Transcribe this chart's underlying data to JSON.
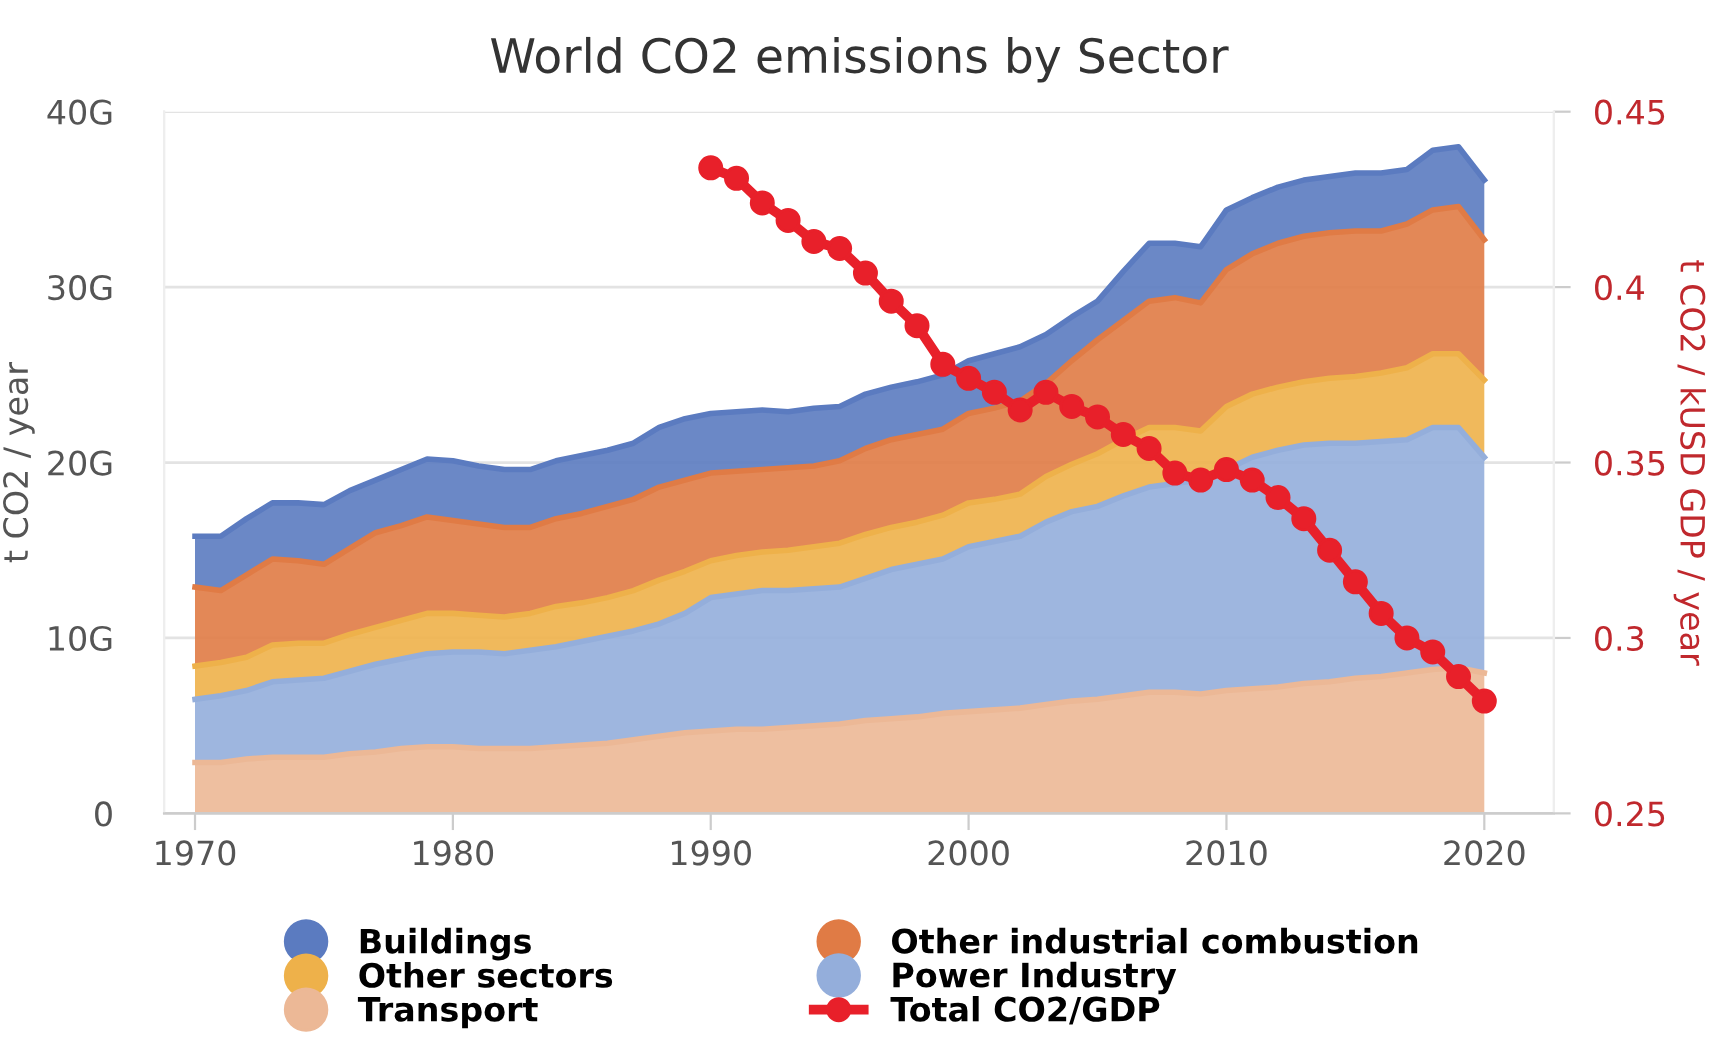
{
  "chart_data": {
    "type": "area",
    "stacked": true,
    "title": "World CO2 emissions by Sector",
    "ylabel": "t CO2 / year",
    "y2label": "t CO2 / kUSD GDP / year",
    "x": [
      1970,
      1971,
      1972,
      1973,
      1974,
      1975,
      1976,
      1977,
      1978,
      1979,
      1980,
      1981,
      1982,
      1983,
      1984,
      1985,
      1986,
      1987,
      1988,
      1989,
      1990,
      1991,
      1992,
      1993,
      1994,
      1995,
      1996,
      1997,
      1998,
      1999,
      2000,
      2001,
      2002,
      2003,
      2004,
      2005,
      2006,
      2007,
      2008,
      2009,
      2010,
      2011,
      2012,
      2013,
      2014,
      2015,
      2016,
      2017,
      2018,
      2019,
      2020
    ],
    "xlim": [
      1968.8,
      2022.7
    ],
    "xticks": [
      1970,
      1980,
      1990,
      2000,
      2010,
      2020
    ],
    "ylim": [
      0,
      40
    ],
    "yticks": [
      0,
      {
        "value": 10,
        "label": "10G"
      },
      {
        "value": 20,
        "label": "20G"
      },
      {
        "value": 30,
        "label": "30G"
      },
      {
        "value": 40,
        "label": "40G"
      }
    ],
    "y2lim": [
      0.25,
      0.45
    ],
    "y2ticks": [
      0.25,
      0.3,
      0.35,
      0.4,
      0.45
    ],
    "grid": "y",
    "legend": "bottom",
    "series": [
      {
        "name": "Transport",
        "color": "#ecb896",
        "values": [
          2.9,
          2.9,
          3.1,
          3.2,
          3.2,
          3.2,
          3.4,
          3.5,
          3.7,
          3.8,
          3.8,
          3.7,
          3.7,
          3.7,
          3.8,
          3.9,
          4.0,
          4.2,
          4.4,
          4.6,
          4.7,
          4.8,
          4.8,
          4.9,
          5.0,
          5.1,
          5.3,
          5.4,
          5.5,
          5.7,
          5.8,
          5.9,
          6.0,
          6.2,
          6.4,
          6.5,
          6.7,
          6.9,
          6.9,
          6.8,
          7.0,
          7.1,
          7.2,
          7.4,
          7.5,
          7.7,
          7.8,
          8.0,
          8.2,
          8.3,
          8.0
        ]
      },
      {
        "name": "Power Industry",
        "color": "#94aedb",
        "values": [
          3.6,
          3.8,
          3.9,
          4.3,
          4.4,
          4.5,
          4.7,
          5.0,
          5.1,
          5.3,
          5.4,
          5.5,
          5.4,
          5.6,
          5.7,
          5.9,
          6.1,
          6.2,
          6.4,
          6.8,
          7.6,
          7.7,
          7.9,
          7.8,
          7.8,
          7.8,
          8.1,
          8.5,
          8.7,
          8.8,
          9.4,
          9.6,
          9.8,
          10.4,
          10.8,
          11.0,
          11.4,
          11.7,
          11.9,
          12.2,
          12.6,
          13.2,
          13.5,
          13.6,
          13.6,
          13.4,
          13.4,
          13.3,
          13.8,
          13.7,
          12.3
        ]
      },
      {
        "name": "Other sectors",
        "color": "#eeb14a",
        "values": [
          1.9,
          1.9,
          1.9,
          2.1,
          2.1,
          2.0,
          2.1,
          2.1,
          2.2,
          2.3,
          2.2,
          2.1,
          2.1,
          2.1,
          2.3,
          2.2,
          2.2,
          2.3,
          2.5,
          2.4,
          2.1,
          2.2,
          2.2,
          2.3,
          2.4,
          2.5,
          2.5,
          2.4,
          2.4,
          2.5,
          2.5,
          2.4,
          2.4,
          2.6,
          2.7,
          3.0,
          3.2,
          3.4,
          3.2,
          2.8,
          3.6,
          3.6,
          3.6,
          3.6,
          3.7,
          3.8,
          3.9,
          4.1,
          4.2,
          4.2,
          4.4
        ]
      },
      {
        "name": "Other industrial combustion",
        "color": "#e07b45",
        "values": [
          4.5,
          4.1,
          4.7,
          4.9,
          4.7,
          4.5,
          4.9,
          5.4,
          5.4,
          5.5,
          5.3,
          5.2,
          5.1,
          4.9,
          5.0,
          5.1,
          5.2,
          5.2,
          5.3,
          5.2,
          5.0,
          4.8,
          4.7,
          4.7,
          4.6,
          4.7,
          4.9,
          5.0,
          5.0,
          4.9,
          5.1,
          5.2,
          5.3,
          5.3,
          5.9,
          6.5,
          6.8,
          7.2,
          7.4,
          7.3,
          7.8,
          8.0,
          8.2,
          8.3,
          8.3,
          8.3,
          8.1,
          8.2,
          8.2,
          8.4,
          8.0
        ]
      },
      {
        "name": "Buildings",
        "color": "#5b7bc0",
        "values": [
          2.9,
          3.1,
          3.2,
          3.2,
          3.3,
          3.4,
          3.3,
          3.0,
          3.2,
          3.3,
          3.4,
          3.3,
          3.3,
          3.3,
          3.3,
          3.3,
          3.2,
          3.2,
          3.4,
          3.5,
          3.4,
          3.4,
          3.4,
          3.2,
          3.3,
          3.1,
          3.1,
          3.0,
          3.0,
          3.1,
          3.0,
          3.1,
          3.1,
          2.8,
          2.5,
          2.2,
          2.8,
          3.3,
          3.1,
          3.2,
          3.4,
          3.2,
          3.2,
          3.2,
          3.2,
          3.3,
          3.3,
          3.1,
          3.4,
          3.4,
          3.4
        ]
      },
      {
        "name": "Total CO2/GDP",
        "type": "line",
        "axis": "y2",
        "color": "#e8202a",
        "marker": "circle",
        "line_style": "solid",
        "x": [
          1990,
          1991,
          1992,
          1993,
          1994,
          1995,
          1996,
          1997,
          1998,
          1999,
          2000,
          2001,
          2002,
          2003,
          2004,
          2005,
          2006,
          2007,
          2008,
          2009,
          2010,
          2011,
          2012,
          2013,
          2014,
          2015,
          2016,
          2017,
          2018,
          2019,
          2020
        ],
        "values": [
          0.434,
          0.431,
          0.424,
          0.419,
          0.413,
          0.411,
          0.404,
          0.396,
          0.389,
          0.378,
          0.374,
          0.37,
          0.365,
          0.37,
          0.366,
          0.363,
          0.358,
          0.354,
          0.347,
          0.345,
          0.348,
          0.345,
          0.34,
          0.334,
          0.325,
          0.316,
          0.307,
          0.3,
          0.296,
          0.289,
          0.282
        ]
      }
    ]
  }
}
